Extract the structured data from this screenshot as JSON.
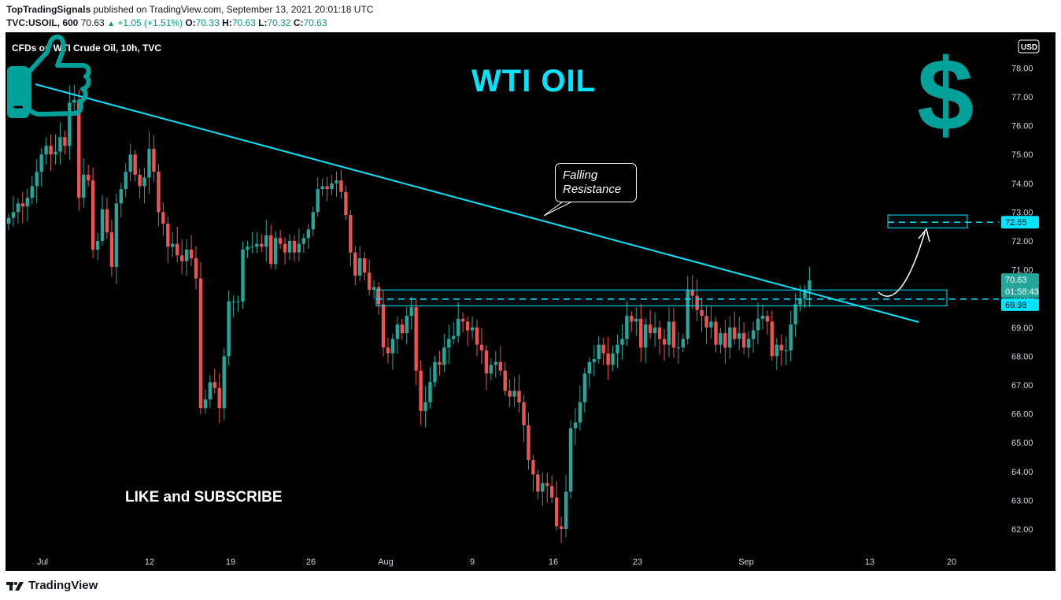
{
  "header": {
    "author": "TopTradingSignals",
    "published": " published on TradingView.com, September 13, 2021 20:01:18 UTC",
    "symbol": "TVC:USOIL, 600",
    "last": " 70.63 ",
    "change": "+1.05 (+1.51%)",
    "o_label": " O:",
    "o": "70.33",
    "h_label": " H:",
    "h": "70.63",
    "l_label": " L:",
    "l": "70.32",
    "c_label": " C:",
    "c": "70.63"
  },
  "chart_title": "WTI OIL",
  "symbol_label": "CFDs on WTI Crude Oil, 10h, TVC",
  "currency_badge": "USD",
  "callout": {
    "line1": "Falling",
    "line2": "Resistance"
  },
  "like_text": "LIKE and SUBSCRIBE",
  "footer_brand": "TradingView",
  "colors": {
    "up": "#26a69a",
    "down": "#ef5350",
    "accent": "#00e5ff",
    "dollar": "#00a19a",
    "background": "#000000"
  },
  "icons": [
    "dollar-icon",
    "thumbs-up-icon",
    "tradingview-logo-icon"
  ],
  "chart_data": {
    "type": "candlestick",
    "title": "WTI OIL",
    "x_tick_labels": [
      "Jul",
      "12",
      "19",
      "26",
      "Aug",
      "9",
      "16",
      "23",
      "Sep",
      "13",
      "20"
    ],
    "y_tick_labels": [
      "62.00",
      "63.00",
      "64.00",
      "65.00",
      "66.00",
      "67.00",
      "68.00",
      "69.00",
      "70.00",
      "71.00",
      "72.00",
      "73.00",
      "74.00",
      "75.00",
      "76.00",
      "77.00",
      "78.00"
    ],
    "ylim": [
      61.5,
      79.0
    ],
    "price_tags": [
      {
        "label": "72.65",
        "value": 72.65,
        "style": "target"
      },
      {
        "label": "70.63",
        "value": 70.63,
        "style": "last"
      },
      {
        "label": "01:58:43",
        "style": "countdown"
      },
      {
        "label": "69.98",
        "value": 69.98,
        "style": "level"
      }
    ],
    "closes": [
      72.8,
      73.0,
      73.3,
      73.2,
      73.5,
      73.9,
      74.4,
      75.0,
      75.3,
      75.0,
      75.1,
      75.6,
      75.3,
      76.8,
      76.9,
      73.5,
      74.3,
      74.1,
      71.7,
      72.0,
      73.1,
      72.3,
      71.1,
      73.3,
      73.8,
      74.4,
      75.0,
      74.3,
      73.9,
      74.2,
      75.2,
      74.4,
      73.0,
      72.6,
      71.8,
      71.9,
      71.5,
      71.3,
      71.7,
      71.4,
      70.7,
      66.2,
      66.5,
      67.1,
      66.9,
      66.2,
      68.0,
      69.9,
      69.9,
      69.9,
      71.7,
      71.8,
      71.8,
      71.9,
      71.8,
      72.2,
      71.2,
      72.1,
      71.9,
      71.6,
      72.0,
      71.6,
      71.9,
      72.1,
      72.4,
      73.0,
      73.8,
      73.9,
      73.8,
      74.0,
      74.1,
      73.7,
      72.9,
      71.6,
      70.8,
      71.4,
      70.9,
      70.3,
      70.4,
      69.8,
      68.3,
      68.1,
      68.6,
      69.1,
      68.8,
      69.4,
      69.7,
      67.5,
      66.1,
      66.4,
      67.1,
      67.8,
      67.7,
      68.3,
      68.6,
      68.7,
      69.3,
      69.2,
      68.9,
      69.0,
      68.4,
      68.2,
      67.4,
      67.7,
      67.8,
      67.5,
      66.8,
      66.6,
      66.8,
      66.4,
      65.6,
      64.4,
      63.9,
      63.3,
      63.6,
      63.5,
      63.1,
      62.1,
      62.0,
      63.3,
      65.5,
      65.7,
      66.4,
      67.4,
      67.8,
      67.9,
      68.4,
      68.1,
      67.7,
      68.1,
      68.4,
      68.6,
      69.4,
      69.2,
      69.3,
      68.3,
      69.1,
      68.8,
      69.0,
      68.6,
      68.4,
      69.2,
      68.3,
      68.3,
      68.6,
      70.3,
      70.1,
      69.6,
      69.4,
      69.0,
      69.2,
      68.4,
      68.8,
      68.3,
      69.0,
      68.6,
      68.8,
      68.3,
      68.6,
      68.9,
      69.3,
      69.4,
      69.2,
      68.0,
      68.4,
      68.2,
      68.2,
      69.1,
      69.8,
      70.0,
      70.3,
      70.63
    ],
    "annotations": [
      {
        "type": "trendline",
        "label": "Falling Resistance",
        "from": {
          "x": "2021-06-30",
          "y": 77.45
        },
        "to": {
          "x": "2021-09-16",
          "y": 69.2
        }
      },
      {
        "type": "zone",
        "from_y": 69.75,
        "to_y": 70.3
      },
      {
        "type": "zone",
        "from_y": 72.45,
        "to_y": 72.9
      },
      {
        "type": "level",
        "y": 69.98,
        "dashed": true
      },
      {
        "type": "level",
        "y": 72.65,
        "dashed": true
      }
    ]
  }
}
